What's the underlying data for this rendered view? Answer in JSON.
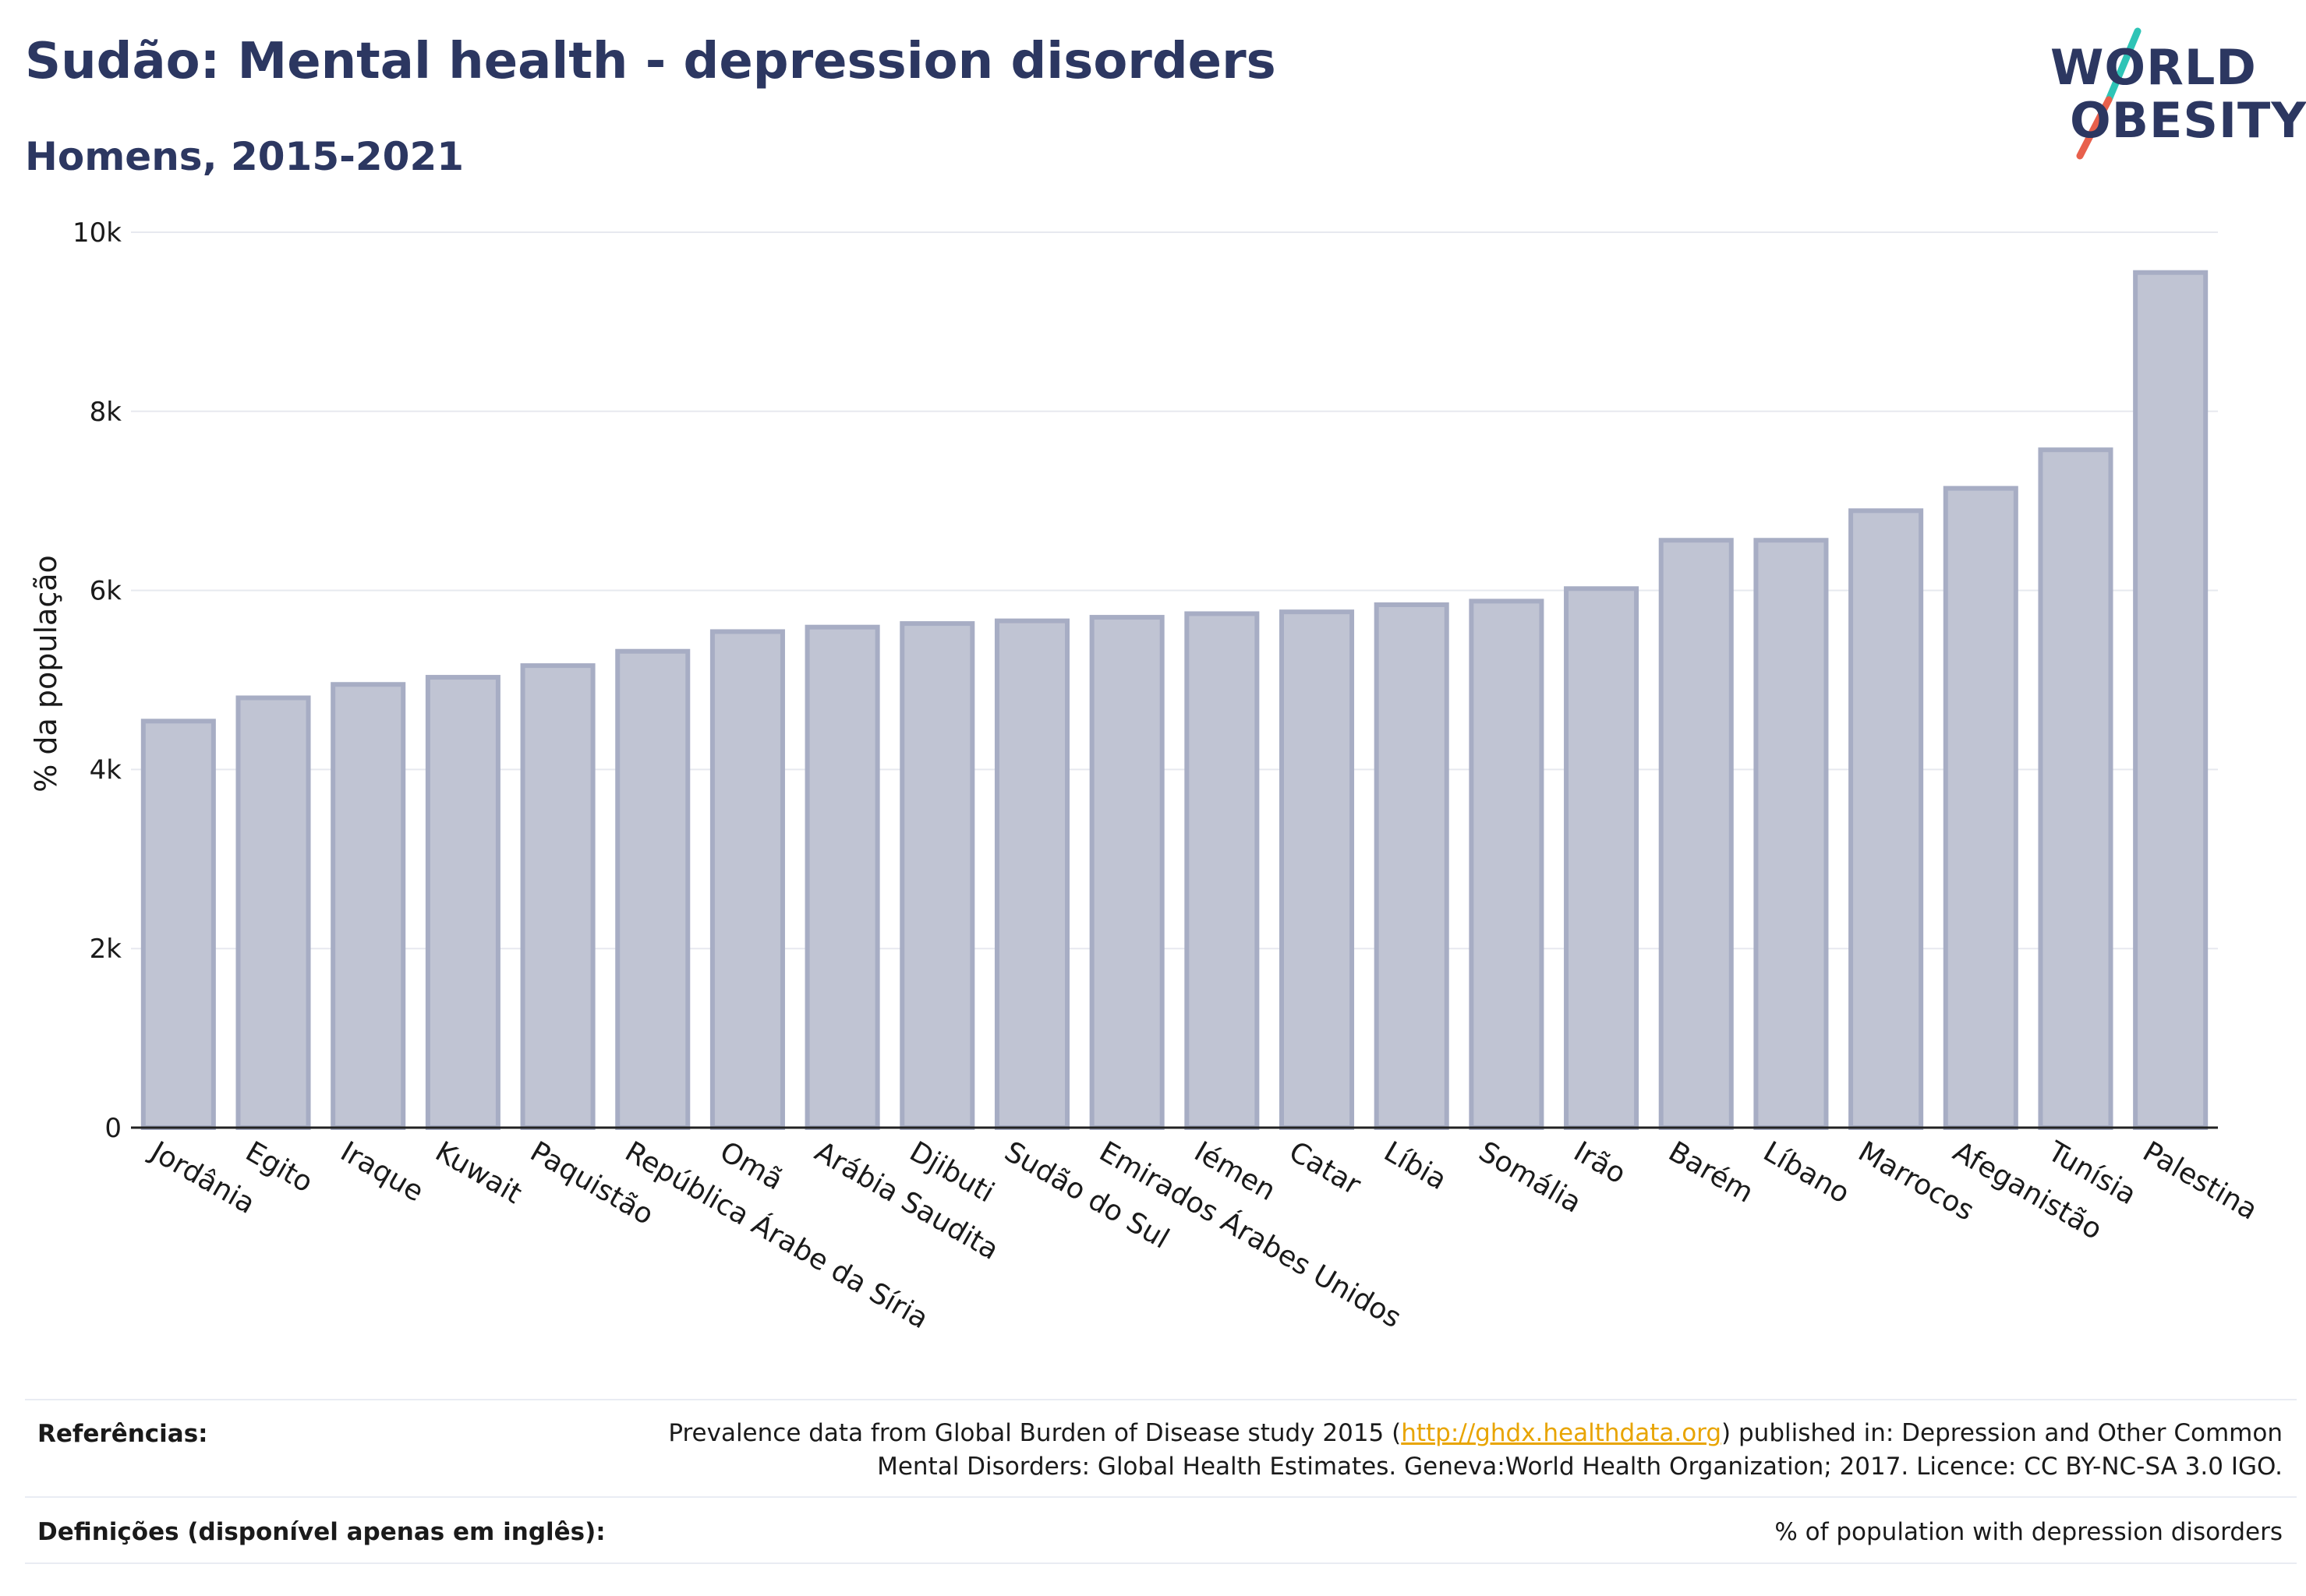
{
  "header": {
    "title": "Sudão: Mental health - depression disorders",
    "subtitle": "Homens, 2015-2021"
  },
  "logo": {
    "line1": "WORLD",
    "line2": "OBESITY",
    "slash_colors": [
      "#2ec4b6",
      "#e8604c"
    ]
  },
  "colors": {
    "bar_fill": "#c0c4d3",
    "bar_stroke": "#a7adc4",
    "text_dark": "#2c3761",
    "grid": "#e7e9ef",
    "link": "#e8a400"
  },
  "chart_data": {
    "type": "bar",
    "ylabel": "% da população",
    "ylim": [
      0,
      10000
    ],
    "yticks": [
      {
        "value": 0,
        "label": "0"
      },
      {
        "value": 2000,
        "label": "2k"
      },
      {
        "value": 4000,
        "label": "4k"
      },
      {
        "value": 6000,
        "label": "6k"
      },
      {
        "value": 8000,
        "label": "8k"
      },
      {
        "value": 10000,
        "label": "10k"
      }
    ],
    "grid": true,
    "categories": [
      "Jordânia",
      "Egito",
      "Iraque",
      "Kuwait",
      "Paquistão",
      "República Árabe da Síria",
      "Omã",
      "Arábia Saudita",
      "Djibuti",
      "Sudão do Sul",
      "Emirados Árabes Unidos",
      "Iémen",
      "Catar",
      "Líbia",
      "Somália",
      "Irão",
      "Barém",
      "Líbano",
      "Marrocos",
      "Afeganistão",
      "Tunísia",
      "Palestina"
    ],
    "values": [
      4540,
      4800,
      4950,
      5030,
      5160,
      5320,
      5540,
      5590,
      5630,
      5660,
      5700,
      5740,
      5760,
      5840,
      5880,
      6020,
      6560,
      6560,
      6890,
      7140,
      7570,
      9550
    ]
  },
  "footer": {
    "references_label": "Referências:",
    "references_text_before": "Prevalence data from Global Burden of Disease study 2015 (",
    "references_link": "http://ghdx.healthdata.org",
    "references_text_after": ") published in: Depression and Other Common",
    "references_text_line2": "Mental Disorders: Global Health Estimates. Geneva:World Health Organization; 2017. Licence: CC BY-NC-SA 3.0 IGO.",
    "definitions_label": "Definições (disponível apenas em inglês):",
    "definitions_text": "% of population with depression disorders"
  }
}
